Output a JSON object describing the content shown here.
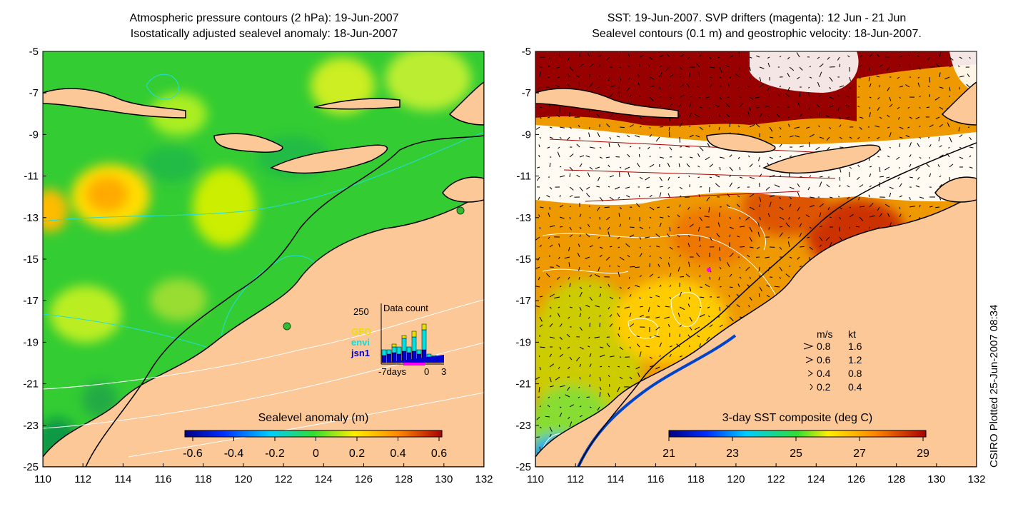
{
  "left_panel": {
    "title_line1": "Atmospheric pressure contours (2 hPa): 19-Jun-2007",
    "title_line2": "Isostatically adjusted sealevel anomaly: 18-Jun-2007",
    "colorbar_label": "Sealevel anomaly (m)",
    "colorbar_ticks": [
      "-0.6",
      "-0.4",
      "-0.2",
      "0",
      "0.2",
      "0.4",
      "0.6"
    ],
    "inset": {
      "title": "Data count",
      "y_label": "250",
      "x_ticks": [
        "-7days",
        "0",
        "3"
      ],
      "legend": [
        {
          "name": "GFO",
          "color": "#e8e000"
        },
        {
          "name": "envi",
          "color": "#00e0e0"
        },
        {
          "name": "jsn1",
          "color": "#0000d0"
        }
      ]
    }
  },
  "right_panel": {
    "title_line1": "SST: 19-Jun-2007. SVP drifters (magenta): 12 Jun - 21 Jun",
    "title_line2": "Sealevel contours (0.1 m) and geostrophic velocity: 18-Jun-2007.",
    "colorbar_label": "3-day SST composite (deg C)",
    "colorbar_ticks": [
      "21",
      "23",
      "25",
      "27",
      "29"
    ],
    "velocity_legend": {
      "header": [
        "m/s",
        "kt"
      ],
      "rows": [
        [
          "0.8",
          "1.6"
        ],
        [
          "0.6",
          "1.2"
        ],
        [
          "0.4",
          "0.8"
        ],
        [
          "0.2",
          "0.4"
        ]
      ]
    }
  },
  "axes": {
    "y_ticks": [
      "-5",
      "-7",
      "-9",
      "-11",
      "-13",
      "-15",
      "-17",
      "-19",
      "-21",
      "-23",
      "-25"
    ],
    "x_ticks": [
      "110",
      "112",
      "114",
      "116",
      "118",
      "120",
      "122",
      "124",
      "126",
      "128",
      "130",
      "132"
    ],
    "lat_range": [
      -25,
      -5
    ],
    "lon_range": [
      110,
      132
    ]
  },
  "credit": "CSIRO Plotted 25-Jun-2007 08:34",
  "colors": {
    "land": "#fcc898",
    "sla_background": "#33cc33",
    "sst_background": "#ee9900",
    "cloud": "#ffffff",
    "contour_left": "#22dddd",
    "contour_right": "#ffffff"
  }
}
